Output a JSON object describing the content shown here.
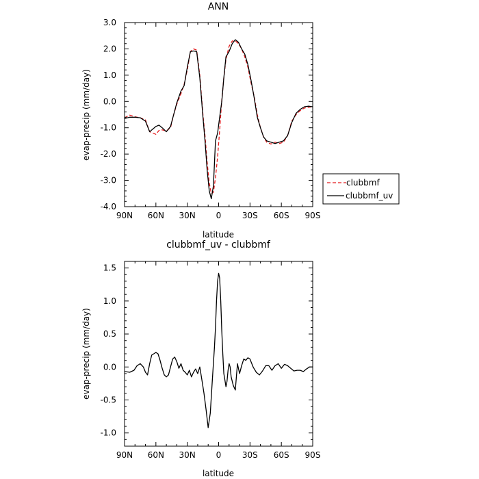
{
  "chart_data": [
    {
      "type": "line",
      "title": "ANN",
      "xlabel": "latitude",
      "ylabel": "evap-precip (mm/day)",
      "xlim": [
        -90,
        90
      ],
      "ylim": [
        -4.0,
        3.0
      ],
      "x_tick_values": [
        -90,
        -60,
        -30,
        0,
        30,
        60,
        90
      ],
      "x_tick_labels": [
        "90N",
        "60N",
        "30N",
        "0",
        "30S",
        "60S",
        "90S"
      ],
      "y_tick_values": [
        -4,
        -3,
        -2,
        -1,
        0,
        1,
        2,
        3
      ],
      "y_tick_labels": [
        "-4.0",
        "-3.0",
        "-2.0",
        "-1.0",
        "0.0",
        "1.0",
        "2.0",
        "3.0"
      ],
      "grid": false,
      "legend_position": "right, outside the plot",
      "series": [
        {
          "name": "clubbmf",
          "color": "#e41a1c",
          "dash": "dashed",
          "x": [
            -90,
            -85,
            -80,
            -75,
            -70,
            -66,
            -63,
            -60,
            -57,
            -54,
            -50,
            -46,
            -43,
            -40,
            -36,
            -33,
            -30,
            -27,
            -24,
            -21,
            -18,
            -15,
            -13,
            -11,
            -9,
            -7,
            -5,
            -3,
            -1,
            1,
            3,
            5,
            7,
            10,
            13,
            16,
            19,
            22,
            25,
            28,
            31,
            34,
            37,
            40,
            43,
            46,
            50,
            54,
            58,
            62,
            66,
            70,
            74,
            78,
            82,
            86,
            90
          ],
          "y": [
            -0.62,
            -0.52,
            -0.58,
            -0.62,
            -0.7,
            -1.15,
            -1.2,
            -1.25,
            -1.1,
            -1.08,
            -1.12,
            -1.0,
            -0.5,
            -0.1,
            0.3,
            0.65,
            1.2,
            1.9,
            2.0,
            1.95,
            1.0,
            -0.5,
            -1.3,
            -2.3,
            -3.1,
            -3.5,
            -3.45,
            -2.9,
            -2.1,
            -1.1,
            0.05,
            0.9,
            1.6,
            2.1,
            2.3,
            2.3,
            2.2,
            2.0,
            1.7,
            1.3,
            0.7,
            0.2,
            -0.5,
            -1.0,
            -1.35,
            -1.55,
            -1.62,
            -1.55,
            -1.6,
            -1.55,
            -1.3,
            -0.75,
            -0.5,
            -0.35,
            -0.25,
            -0.22,
            -0.2
          ]
        },
        {
          "name": "clubbmf_uv",
          "color": "#000000",
          "dash": "solid",
          "x": [
            -90,
            -85,
            -80,
            -75,
            -70,
            -66,
            -63,
            -60,
            -57,
            -54,
            -50,
            -46,
            -43,
            -40,
            -36,
            -33,
            -30,
            -27,
            -24,
            -21,
            -18,
            -15,
            -13,
            -11,
            -9,
            -7,
            -5,
            -3,
            -1,
            1,
            3,
            5,
            7,
            10,
            13,
            16,
            19,
            22,
            25,
            28,
            31,
            34,
            37,
            40,
            43,
            46,
            50,
            54,
            58,
            62,
            66,
            70,
            74,
            78,
            82,
            86,
            90
          ],
          "y": [
            -0.65,
            -0.6,
            -0.6,
            -0.62,
            -0.75,
            -1.15,
            -1.05,
            -0.95,
            -0.9,
            -1.0,
            -1.15,
            -0.95,
            -0.5,
            -0.05,
            0.4,
            0.6,
            1.3,
            1.9,
            1.92,
            1.9,
            0.9,
            -0.6,
            -1.5,
            -2.6,
            -3.4,
            -3.7,
            -3.2,
            -1.5,
            -1.2,
            -0.6,
            0.0,
            0.9,
            1.7,
            1.9,
            2.2,
            2.35,
            2.25,
            2.0,
            1.8,
            1.4,
            0.8,
            0.15,
            -0.6,
            -1.0,
            -1.35,
            -1.5,
            -1.55,
            -1.6,
            -1.55,
            -1.5,
            -1.3,
            -0.8,
            -0.45,
            -0.3,
            -0.2,
            -0.18,
            -0.2
          ]
        }
      ]
    },
    {
      "type": "line",
      "title": "clubbmf_uv - clubbmf",
      "xlabel": "latitude",
      "ylabel": "evap-precip (mm/day)",
      "xlim": [
        -90,
        90
      ],
      "ylim": [
        -1.2,
        1.6
      ],
      "x_tick_values": [
        -90,
        -60,
        -30,
        0,
        30,
        60,
        90
      ],
      "x_tick_labels": [
        "90N",
        "60N",
        "30N",
        "0",
        "30S",
        "60S",
        "90S"
      ],
      "y_tick_values": [
        -1.0,
        -0.5,
        0.0,
        0.5,
        1.0,
        1.5
      ],
      "y_tick_labels": [
        "-1.0",
        "-0.5",
        "0.0",
        "0.5",
        "1.0",
        "1.5"
      ],
      "grid": false,
      "series": [
        {
          "color": "#000000",
          "dash": "solid",
          "x": [
            -90,
            -85,
            -81,
            -78,
            -75,
            -72,
            -70,
            -68,
            -66,
            -64,
            -62,
            -60,
            -58,
            -56,
            -54,
            -52,
            -50,
            -48,
            -46,
            -44,
            -42,
            -40,
            -38,
            -36,
            -34,
            -32,
            -30,
            -28,
            -26,
            -24,
            -22,
            -20,
            -18,
            -16,
            -14,
            -12,
            -10,
            -8,
            -6,
            -4,
            -3,
            -2,
            -1,
            0,
            1,
            2,
            3,
            4,
            5,
            6,
            7,
            8,
            9,
            10,
            11,
            12,
            14,
            16,
            18,
            20,
            22,
            24,
            26,
            28,
            30,
            33,
            36,
            39,
            42,
            45,
            48,
            51,
            54,
            57,
            60,
            63,
            66,
            69,
            72,
            75,
            78,
            81,
            84,
            87,
            90
          ],
          "y": [
            -0.07,
            -0.08,
            -0.05,
            0.02,
            0.05,
            0.0,
            -0.08,
            -0.12,
            0.05,
            0.18,
            0.2,
            0.22,
            0.2,
            0.1,
            -0.02,
            -0.12,
            -0.15,
            -0.12,
            0.0,
            0.12,
            0.15,
            0.08,
            -0.02,
            0.05,
            -0.05,
            -0.08,
            -0.12,
            -0.05,
            -0.15,
            -0.08,
            -0.03,
            -0.1,
            0.0,
            -0.2,
            -0.4,
            -0.65,
            -0.92,
            -0.7,
            -0.2,
            0.3,
            0.6,
            1.0,
            1.3,
            1.42,
            1.35,
            1.0,
            0.55,
            0.2,
            -0.1,
            -0.2,
            -0.3,
            -0.22,
            -0.05,
            0.05,
            0.0,
            -0.15,
            -0.28,
            -0.35,
            0.05,
            -0.1,
            0.02,
            0.12,
            0.1,
            0.14,
            0.12,
            0.0,
            -0.08,
            -0.12,
            -0.06,
            0.02,
            0.02,
            -0.05,
            0.02,
            0.05,
            -0.02,
            0.04,
            0.02,
            -0.02,
            -0.06,
            -0.05,
            -0.05,
            -0.07,
            -0.03,
            0.0,
            0.0
          ]
        }
      ]
    }
  ]
}
